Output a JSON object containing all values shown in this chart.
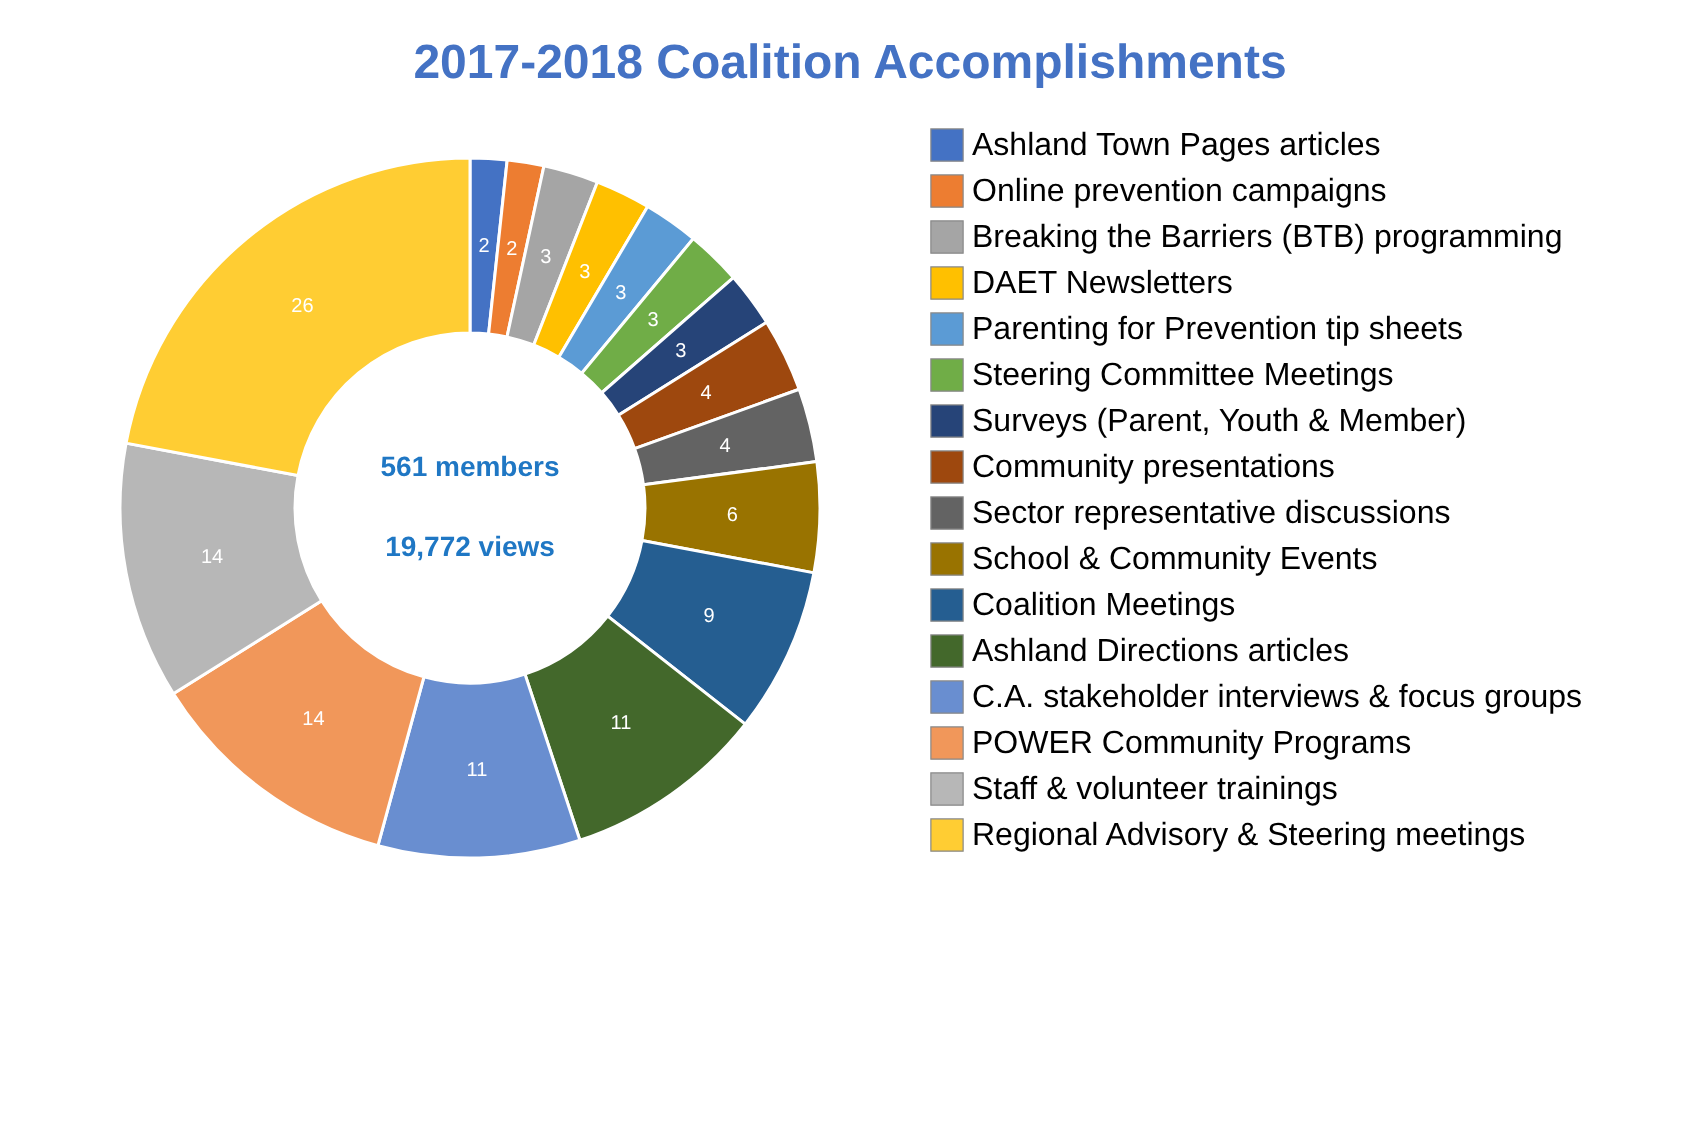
{
  "chart_data": {
    "type": "donut",
    "title": "2017-2018 Coalition Accomplishments",
    "categories": [
      "Ashland Town Pages articles",
      "Online prevention campaigns",
      "Breaking the Barriers (BTB) programming",
      "DAET Newsletters",
      "Parenting for Prevention tip sheets",
      "Steering Committee Meetings",
      "Surveys (Parent, Youth & Member)",
      "Community presentations",
      "Sector representative discussions",
      "School & Community Events",
      "Coalition Meetings",
      "Ashland Directions articles",
      "C.A. stakeholder interviews & focus groups",
      "POWER Community Programs",
      "Staff & volunteer trainings",
      "Regional Advisory & Steering meetings"
    ],
    "values": [
      2,
      2,
      3,
      3,
      3,
      3,
      3,
      4,
      4,
      6,
      9,
      11,
      11,
      14,
      14,
      26
    ],
    "colors": [
      "#4472c4",
      "#ed7d31",
      "#a5a5a5",
      "#ffc000",
      "#5b9bd5",
      "#70ad47",
      "#264478",
      "#9e480e",
      "#636363",
      "#997300",
      "#255e91",
      "#43682b",
      "#698ed0",
      "#f1975a",
      "#b7b7b7",
      "#ffcd33"
    ],
    "data_labels": true,
    "legend": "right",
    "annotations": [
      "561 members",
      "19,772 views"
    ]
  }
}
